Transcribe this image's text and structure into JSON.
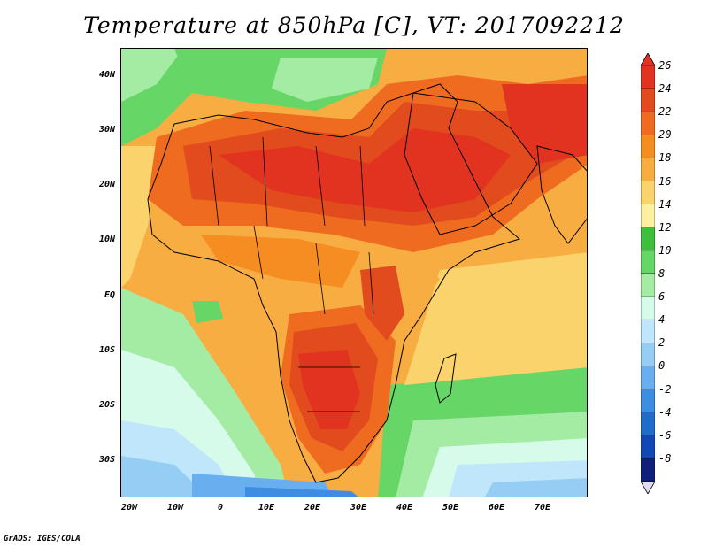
{
  "title": "Temperature at 850hPa [C], VT: 2017092212",
  "credit": "GrADS: IGES/COLA",
  "axes": {
    "lat_ticks": [
      "40N",
      "30N",
      "20N",
      "10N",
      "EQ",
      "10S",
      "20S",
      "30S"
    ],
    "lon_ticks": [
      "20W",
      "10W",
      "0",
      "10E",
      "20E",
      "30E",
      "40E",
      "50E",
      "60E",
      "70E"
    ]
  },
  "colorbar": {
    "labels": [
      "26",
      "24",
      "22",
      "20",
      "18",
      "16",
      "14",
      "12",
      "10",
      "8",
      "6",
      "4",
      "2",
      "0",
      "-2",
      "-4",
      "-6",
      "-8"
    ],
    "colors": [
      "#e1331f",
      "#e14b1e",
      "#ee6b20",
      "#f68d22",
      "#f8ad43",
      "#fbd36d",
      "#fcf0a1",
      "#3cbf3c",
      "#66d766",
      "#a4eba4",
      "#d6fbea",
      "#bfe6fb",
      "#95cdf5",
      "#69aff0",
      "#3d8de2",
      "#1f6ccd",
      "#1248b6",
      "#10207a"
    ],
    "max_label": "26",
    "min_label": "-8"
  },
  "map": {
    "region": "Africa and Middle East",
    "lon_range": [
      -22,
      80
    ],
    "lat_range": [
      -37,
      45
    ]
  }
}
